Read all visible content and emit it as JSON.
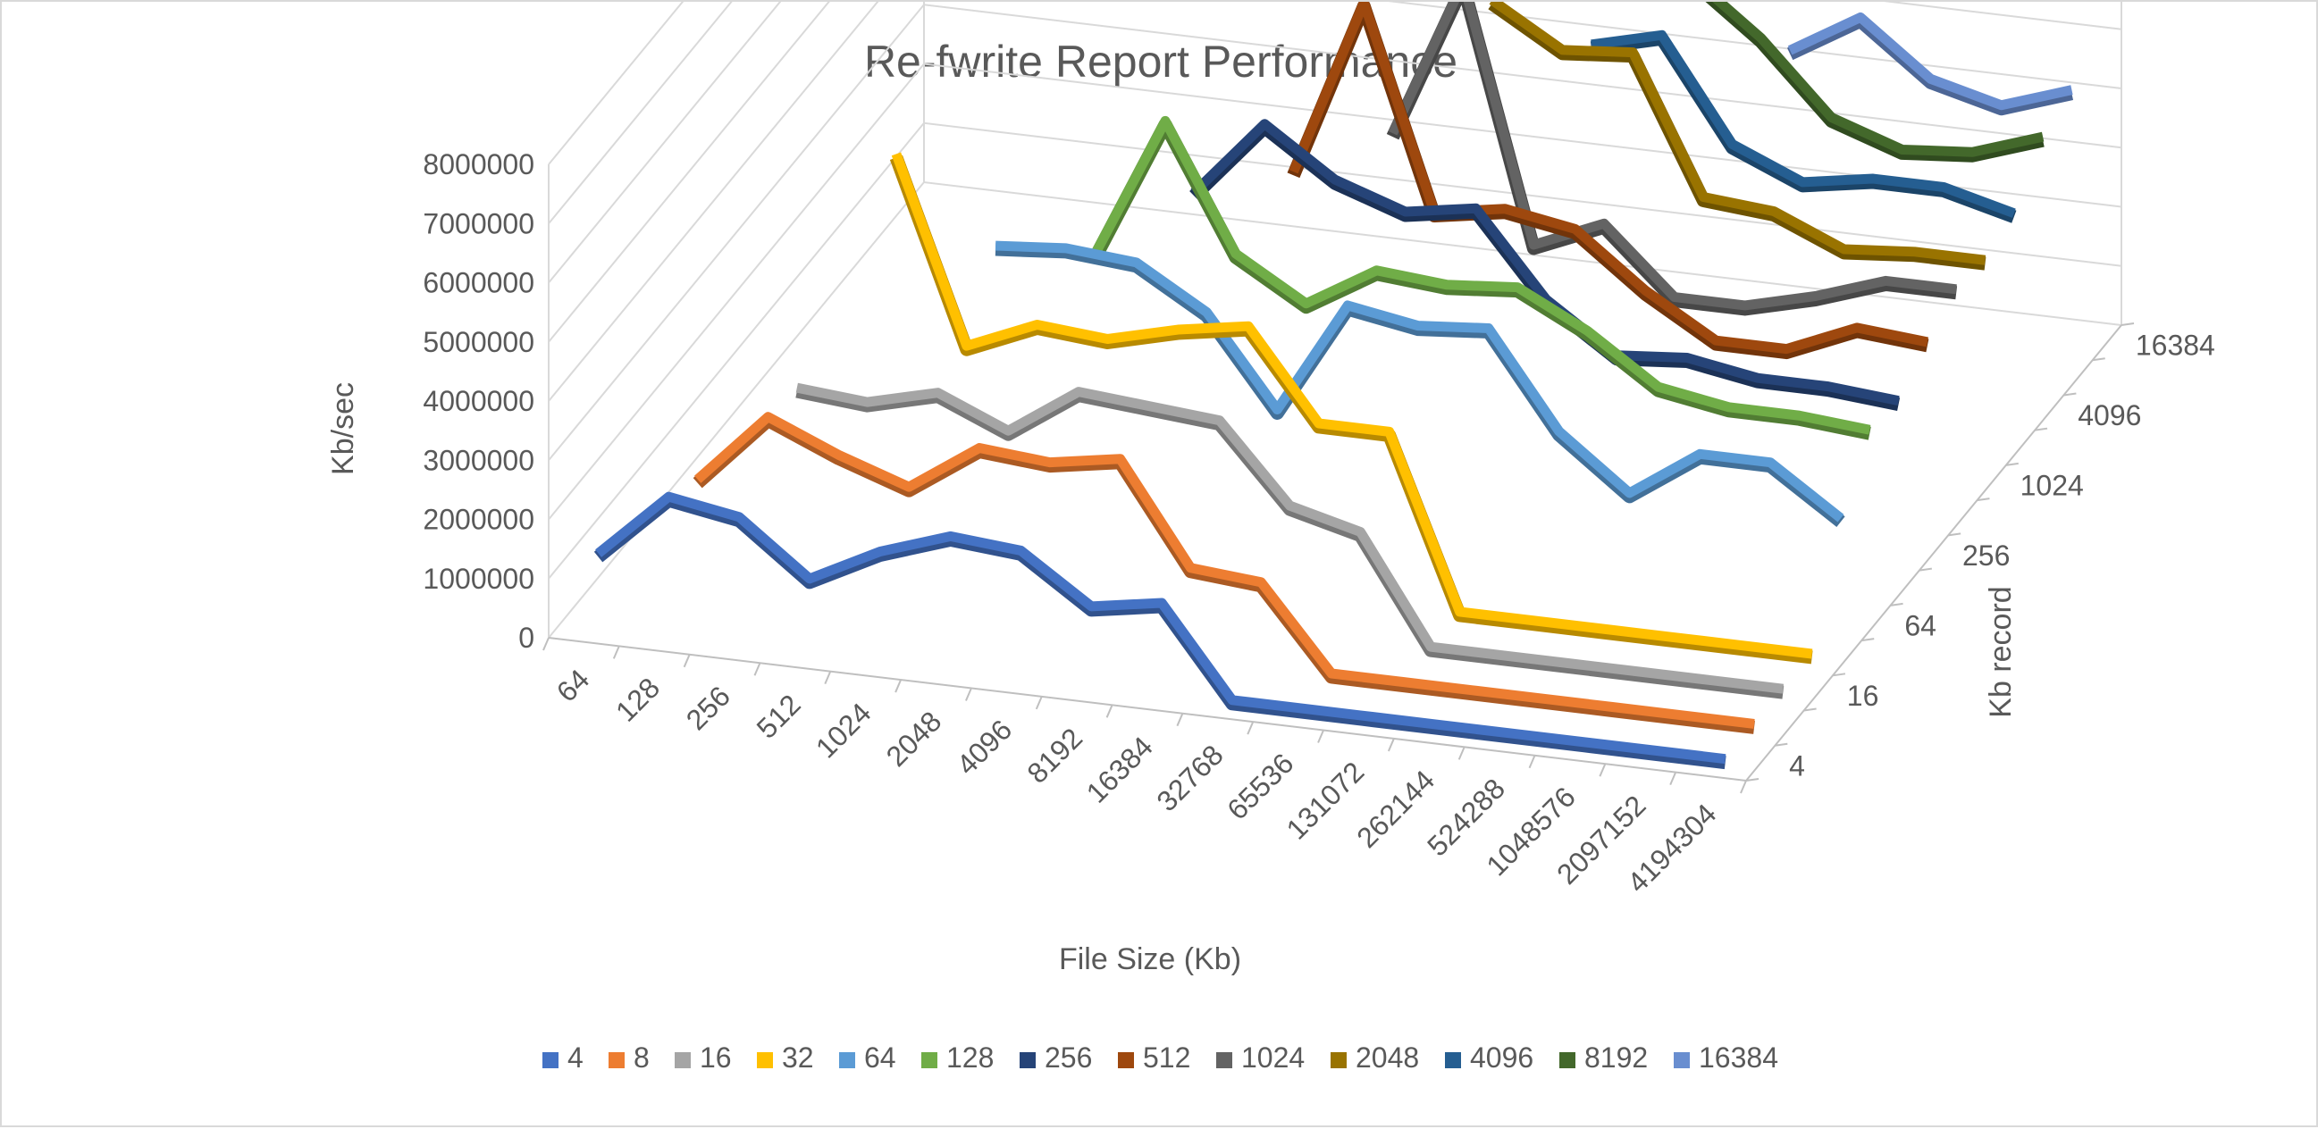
{
  "chart_data": {
    "type": "line",
    "variant": "3d-line",
    "title": "Re-fwrite Report Performance",
    "xlabel": "File Size (Kb)",
    "ylabel": "Kb/sec",
    "zlabel": "Kb record",
    "ylim": [
      0,
      8000000
    ],
    "yticks": [
      0,
      1000000,
      2000000,
      3000000,
      4000000,
      5000000,
      6000000,
      7000000,
      8000000
    ],
    "categories": [
      "64",
      "128",
      "256",
      "512",
      "1024",
      "2048",
      "4096",
      "8192",
      "16384",
      "32768",
      "65536",
      "131072",
      "262144",
      "524288",
      "1048576",
      "2097152",
      "4194304"
    ],
    "depth_labels": [
      "4",
      "16",
      "64",
      "256",
      "1024",
      "4096",
      "16384"
    ],
    "grid": true,
    "legend_position": "bottom",
    "series": [
      {
        "name": "4",
        "color": "#4472C4",
        "values": [
          1200000,
          2300000,
          2100000,
          1200000,
          1800000,
          2200000,
          2100000,
          1300000,
          1500000,
          0,
          0,
          0,
          0,
          0,
          0,
          0,
          0
        ]
      },
      {
        "name": "8",
        "color": "#ED7D31",
        "values": [
          null,
          2000000,
          3200000,
          2700000,
          2300000,
          3100000,
          3000000,
          3200000,
          1500000,
          1400000,
          0,
          0,
          0,
          0,
          0,
          0,
          0
        ]
      },
      {
        "name": "16",
        "color": "#A5A5A5",
        "values": [
          null,
          null,
          3100000,
          3000000,
          3300000,
          2800000,
          3600000,
          3500000,
          3400000,
          2100000,
          1800000,
          0,
          0,
          0,
          0,
          0,
          0
        ]
      },
      {
        "name": "32",
        "color": "#FFC000",
        "values": [
          null,
          null,
          null,
          6600000,
          3500000,
          4000000,
          3900000,
          4200000,
          4400000,
          2900000,
          2900000,
          0,
          0,
          0,
          0,
          0,
          0
        ]
      },
      {
        "name": "64",
        "color": "#5B9BD5",
        "values": [
          null,
          null,
          null,
          null,
          4600000,
          4700000,
          4600000,
          3900000,
          2400000,
          4300000,
          4100000,
          4200000,
          2600000,
          1700000,
          2500000,
          2500000,
          1700000
        ]
      },
      {
        "name": "128",
        "color": "#70AD47",
        "values": [
          null,
          null,
          null,
          null,
          null,
          4000000,
          6400000,
          4300000,
          3600000,
          4300000,
          4200000,
          4300000,
          3700000,
          2900000,
          2700000,
          2700000,
          2600000
        ]
      },
      {
        "name": "256",
        "color": "#264478",
        "values": [
          null,
          null,
          null,
          null,
          null,
          null,
          4600000,
          5900000,
          5100000,
          4700000,
          4900000,
          3500000,
          2700000,
          2800000,
          2600000,
          2600000,
          2500000
        ]
      },
      {
        "name": "512",
        "color": "#9E480E",
        "values": [
          null,
          null,
          null,
          null,
          null,
          null,
          null,
          4500000,
          7500000,
          4100000,
          4300000,
          4100000,
          3200000,
          2500000,
          2500000,
          3000000,
          2900000
        ]
      },
      {
        "name": "1024",
        "color": "#636363",
        "values": [
          null,
          null,
          null,
          null,
          null,
          null,
          null,
          null,
          4700000,
          7400000,
          3100000,
          3600000,
          2500000,
          2500000,
          2800000,
          3200000,
          3200000
        ]
      },
      {
        "name": "2048",
        "color": "#997300",
        "values": [
          null,
          null,
          null,
          null,
          null,
          null,
          null,
          null,
          null,
          6500000,
          5800000,
          5900000,
          3600000,
          3500000,
          3000000,
          3100000,
          3100000
        ]
      },
      {
        "name": "4096",
        "color": "#255E91",
        "values": [
          null,
          null,
          null,
          null,
          null,
          null,
          null,
          null,
          null,
          null,
          5300000,
          5600000,
          3900000,
          3400000,
          3600000,
          3600000,
          3300000
        ]
      },
      {
        "name": "8192",
        "color": "#43682B",
        "values": [
          null,
          null,
          null,
          null,
          null,
          null,
          null,
          null,
          null,
          null,
          null,
          6000000,
          5100000,
          3900000,
          3500000,
          3600000,
          4000000
        ]
      },
      {
        "name": "16384",
        "color": "#698ED0",
        "values": [
          null,
          null,
          null,
          null,
          null,
          null,
          null,
          null,
          null,
          null,
          null,
          null,
          4300000,
          5000000,
          4100000,
          3800000,
          4200000
        ]
      }
    ]
  }
}
